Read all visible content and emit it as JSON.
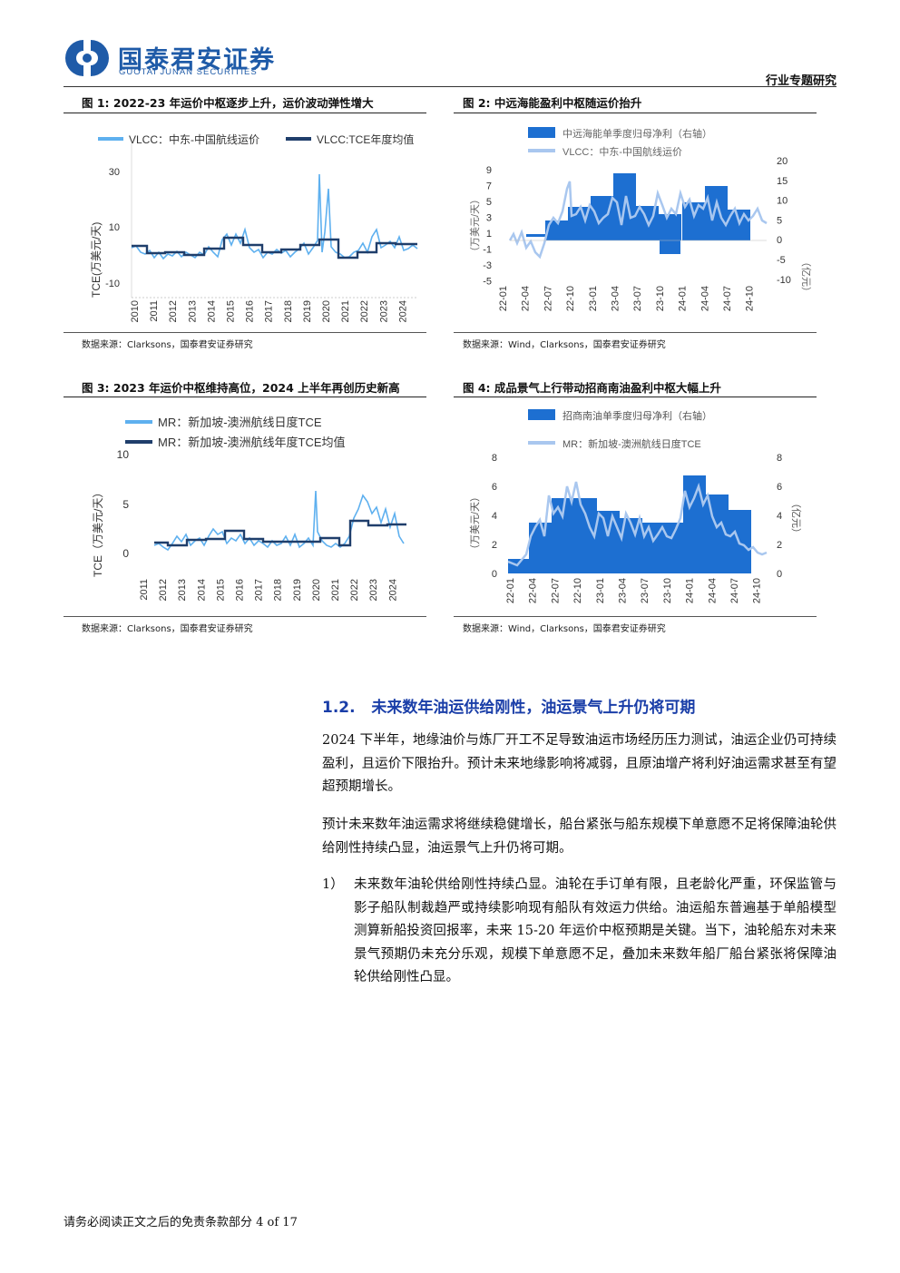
{
  "header": {
    "logo_cn": "国泰君安证券",
    "logo_en": "GUOTAI JUNAN SECURITIES",
    "report_type": "行业专题研究"
  },
  "figures": [
    {
      "title": "图 1:  2022-23 年运价中枢逐步上升，运价波动弹性增大",
      "source": "数据来源：Clarksons，国泰君安证券研究",
      "legend": [
        "VLCC：中东-中国航线运价",
        "VLCC:TCE年度均值"
      ],
      "ylabel": "TCE(万美元/天)",
      "yticks": [
        "30",
        "10",
        "-10"
      ],
      "xticks": [
        "2010",
        "2011",
        "2012",
        "2013",
        "2014",
        "2015",
        "2016",
        "2017",
        "2018",
        "2019",
        "2020",
        "2021",
        "2022",
        "2023",
        "2024"
      ]
    },
    {
      "title": "图 2:  中远海能盈利中枢随运价抬升",
      "source": "数据来源：Wind，Clarksons，国泰君安证券研究",
      "legend": [
        "中远海能单季度归母净利（右轴）",
        "VLCC：中东-中国航线运价"
      ],
      "ylabel_left": "（万美元/天）",
      "ylabel_right": "（亿元）",
      "yticks_left": [
        "9",
        "7",
        "5",
        "3",
        "1",
        "-1",
        "-3",
        "-5"
      ],
      "yticks_right": [
        "20",
        "15",
        "10",
        "5",
        "0",
        "-5",
        "-10"
      ],
      "xticks": [
        "22-01",
        "22-04",
        "22-07",
        "22-10",
        "23-01",
        "23-04",
        "23-07",
        "23-10",
        "24-01",
        "24-04",
        "24-07",
        "24-10"
      ]
    },
    {
      "title": "图 3:  2023 年运价中枢维持高位，2024 上半年再创历史新高",
      "source": "数据来源：Clarksons，国泰君安证券研究",
      "legend": [
        "MR：新加坡-澳洲航线日度TCE",
        "MR：新加坡-澳洲航线年度TCE均值"
      ],
      "ylabel": "TCE（万美元/天）",
      "yticks": [
        "10",
        "5",
        "0"
      ],
      "xticks": [
        "2011",
        "2012",
        "2013",
        "2014",
        "2015",
        "2016",
        "2017",
        "2018",
        "2019",
        "2020",
        "2021",
        "2022",
        "2023",
        "2024"
      ]
    },
    {
      "title": "图 4:  成品景气上行带动招商南油盈利中枢大幅上升",
      "source": "数据来源：Wind，Clarksons，国泰君安证券研究",
      "legend": [
        "招商南油单季度归母净利（右轴）",
        "MR：新加坡-澳洲航线日度TCE"
      ],
      "ylabel_left": "（万美元/天）",
      "ylabel_right": "（亿元）",
      "yticks_left": [
        "8",
        "6",
        "4",
        "2",
        "0"
      ],
      "yticks_right": [
        "8",
        "6",
        "4",
        "2",
        "0"
      ],
      "xticks": [
        "22-01",
        "22-04",
        "22-07",
        "22-10",
        "23-01",
        "23-04",
        "23-07",
        "23-10",
        "24-01",
        "24-04",
        "24-07",
        "24-10"
      ]
    }
  ],
  "chart_data": [
    {
      "type": "line",
      "title": "2022-23 年运价中枢逐步上升，运价波动弹性增大",
      "ylabel": "TCE(万美元/天)",
      "ylim": [
        -10,
        30
      ],
      "series": [
        {
          "name": "VLCC：中东-中国航线运价",
          "x": [
            "2010",
            "2011",
            "2012",
            "2013",
            "2014",
            "2015",
            "2016",
            "2017",
            "2018",
            "2019",
            "2020",
            "2020.3",
            "2021",
            "2022",
            "2022.8",
            "2023",
            "2024"
          ],
          "values": [
            4,
            3,
            2,
            3,
            2,
            6,
            5,
            2,
            2,
            3,
            6,
            29,
            1,
            0,
            5,
            4,
            4
          ]
        },
        {
          "name": "VLCC:TCE年度均值",
          "x": [
            "2010",
            "2011",
            "2012",
            "2013",
            "2014",
            "2015",
            "2016",
            "2017",
            "2018",
            "2019",
            "2020",
            "2021",
            "2022",
            "2023",
            "2024"
          ],
          "values": [
            4,
            2,
            2,
            2,
            3,
            6,
            4,
            2,
            2,
            4,
            6,
            1,
            2,
            4,
            4
          ]
        }
      ]
    },
    {
      "type": "bar",
      "title": "中远海能盈利中枢随运价抬升",
      "categories": [
        "22Q1",
        "22Q2",
        "22Q3",
        "22Q4",
        "23Q1",
        "23Q2",
        "23Q3",
        "23Q4",
        "24Q1",
        "24Q2",
        "24Q3",
        "24Q4"
      ],
      "series": [
        {
          "name": "中远海能单季度归母净利（右轴）",
          "axis": "right",
          "values": [
            0.2,
            0.3,
            5,
            11,
            9,
            17,
            11,
            10,
            -3,
            9,
            13,
            8
          ]
        },
        {
          "name": "VLCC：中东-中国航线运价",
          "axis": "left",
          "type": "line",
          "values": [
            1,
            0.5,
            -1,
            3,
            8,
            4,
            2,
            3,
            4,
            3,
            4,
            3
          ]
        }
      ],
      "ylim_left": [
        -5,
        9
      ],
      "ylim_right": [
        -10,
        20
      ]
    },
    {
      "type": "line",
      "title": "2023 年运价中枢维持高位，2024 上半年再创历史新高",
      "ylabel": "TCE（万美元/天）",
      "ylim": [
        0,
        10
      ],
      "series": [
        {
          "name": "MR：新加坡-澳洲航线日度TCE",
          "x": [
            "2011",
            "2012",
            "2013",
            "2014",
            "2015",
            "2016",
            "2017",
            "2018",
            "2019",
            "2020",
            "2020.3",
            "2021",
            "2022",
            "2022.5",
            "2023",
            "2024"
          ],
          "values": [
            1,
            0.5,
            1.5,
            1.5,
            2,
            1.5,
            1,
            1,
            1,
            1.5,
            6.5,
            0.5,
            2,
            5,
            3,
            1.2
          ]
        },
        {
          "name": "MR：新加坡-澳洲航线年度TCE均值",
          "x": [
            "2011",
            "2012",
            "2013",
            "2014",
            "2015",
            "2016",
            "2017",
            "2018",
            "2019",
            "2020",
            "2021",
            "2022",
            "2023",
            "2024"
          ],
          "values": [
            1,
            0.8,
            1.4,
            1.5,
            2.2,
            1.5,
            1.2,
            1.2,
            1.2,
            1.7,
            0.8,
            3.2,
            2.7,
            2.8
          ]
        }
      ]
    },
    {
      "type": "bar",
      "title": "成品景气上行带动招商南油盈利中枢大幅上升",
      "categories": [
        "22Q1",
        "22Q2",
        "22Q3",
        "22Q4",
        "23Q1",
        "23Q2",
        "23Q3",
        "23Q4",
        "24Q1",
        "24Q2",
        "24Q3",
        "24Q4"
      ],
      "series": [
        {
          "name": "招商南油单季度归母净利（右轴）",
          "axis": "right",
          "values": [
            1,
            3.5,
            5.2,
            5.2,
            4.3,
            3.8,
            3.4,
            3.4,
            6.6,
            5.3,
            4.3,
            0
          ]
        },
        {
          "name": "MR：新加坡-澳洲航线日度TCE",
          "axis": "left",
          "type": "line",
          "values": [
            1,
            3,
            5,
            4,
            4.5,
            3.5,
            3,
            2.5,
            4,
            5,
            2,
            1.5
          ]
        }
      ],
      "ylim_left": [
        0,
        8
      ],
      "ylim_right": [
        0,
        8
      ]
    }
  ],
  "section": {
    "number": "1.2.",
    "title": "未来数年油运供给刚性，油运景气上升仍将可期"
  },
  "paragraphs": [
    "2024 下半年，地缘油价与炼厂开工不足导致油运市场经历压力测试，油运企业仍可持续盈利，且运价下限抬升。预计未来地缘影响将减弱，且原油增产将利好油运需求甚至有望超预期增长。",
    "预计未来数年油运需求将继续稳健增长，船台紧张与船东规模下单意愿不足将保障油轮供给刚性持续凸显，油运景气上升仍将可期。"
  ],
  "list_items": [
    {
      "num": "1）",
      "text": "未来数年油轮供给刚性持续凸显。油轮在手订单有限，且老龄化严重，环保监管与影子船队制裁趋严或持续影响现有船队有效运力供给。油运船东普遍基于单船模型测算新船投资回报率，未来 15-20 年运价中枢预期是关键。当下，油轮船东对未来景气预期仍未充分乐观，规模下单意愿不足，叠加未来数年船厂船台紧张将保障油轮供给刚性凸显。"
    }
  ],
  "footer": {
    "text": "请务必阅读正文之后的免责条款部分 4 of 17"
  }
}
